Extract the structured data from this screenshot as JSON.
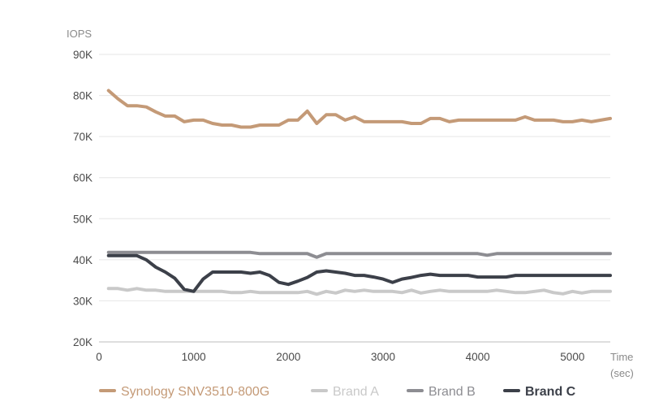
{
  "chart_data": {
    "type": "line",
    "ylabel": "IOPS",
    "xlabel_lines": [
      "Time",
      "(sec)"
    ],
    "xlim": [
      0,
      5400
    ],
    "ylim": [
      20000,
      90000
    ],
    "x_ticks": [
      0,
      1000,
      2000,
      3000,
      4000,
      5000
    ],
    "x_tick_labels": [
      "0",
      "1000",
      "2000",
      "3000",
      "4000",
      "5000"
    ],
    "y_ticks": [
      20000,
      30000,
      40000,
      50000,
      60000,
      70000,
      80000,
      90000
    ],
    "y_tick_labels": [
      "20K",
      "30K",
      "40K",
      "50K",
      "60K",
      "70K",
      "80K",
      "90K"
    ],
    "grid": "horizontal",
    "legend_position": "bottom",
    "x": [
      100,
      200,
      300,
      400,
      500,
      600,
      700,
      800,
      900,
      1000,
      1100,
      1200,
      1300,
      1400,
      1500,
      1600,
      1700,
      1800,
      1900,
      2000,
      2100,
      2200,
      2300,
      2400,
      2500,
      2600,
      2700,
      2800,
      2900,
      3000,
      3100,
      3200,
      3300,
      3400,
      3500,
      3600,
      3700,
      3800,
      3900,
      4000,
      4100,
      4200,
      4300,
      4400,
      4500,
      4600,
      4700,
      4800,
      4900,
      5000,
      5100,
      5200,
      5300,
      5400
    ],
    "series": [
      {
        "name": "Synology SNV3510-800G",
        "color": "#c49a77",
        "values": [
          81200,
          79200,
          77500,
          77500,
          77200,
          76000,
          75000,
          75000,
          73600,
          74000,
          74000,
          73200,
          72800,
          72800,
          72300,
          72300,
          72800,
          72800,
          72800,
          74000,
          74000,
          76200,
          73200,
          75300,
          75300,
          74000,
          74800,
          73600,
          73600,
          73600,
          73600,
          73600,
          73200,
          73200,
          74400,
          74400,
          73600,
          74000,
          74000,
          74000,
          74000,
          74000,
          74000,
          74000,
          74800,
          74000,
          74000,
          74000,
          73600,
          73600,
          74000,
          73600,
          74000,
          74400
        ]
      },
      {
        "name": "Brand A",
        "color": "#c9c9c9",
        "values": [
          33000,
          33000,
          32600,
          33000,
          32600,
          32600,
          32300,
          32300,
          32300,
          32300,
          32300,
          32300,
          32300,
          32000,
          32000,
          32300,
          32000,
          32000,
          32000,
          32000,
          32000,
          32300,
          31600,
          32300,
          31900,
          32600,
          32300,
          32600,
          32300,
          32300,
          32300,
          32000,
          32600,
          31900,
          32300,
          32600,
          32300,
          32300,
          32300,
          32300,
          32300,
          32600,
          32300,
          32000,
          32000,
          32300,
          32600,
          32000,
          31700,
          32300,
          31900,
          32300,
          32300,
          32300
        ]
      },
      {
        "name": "Brand B",
        "color": "#8d8d92",
        "values": [
          41800,
          41800,
          41800,
          41800,
          41800,
          41800,
          41800,
          41800,
          41800,
          41800,
          41800,
          41800,
          41800,
          41800,
          41800,
          41800,
          41500,
          41500,
          41500,
          41500,
          41500,
          41500,
          40600,
          41500,
          41500,
          41500,
          41500,
          41500,
          41500,
          41500,
          41500,
          41500,
          41500,
          41500,
          41500,
          41500,
          41500,
          41500,
          41500,
          41500,
          41100,
          41500,
          41500,
          41500,
          41500,
          41500,
          41500,
          41500,
          41500,
          41500,
          41500,
          41500,
          41500,
          41500
        ]
      },
      {
        "name": "Brand C",
        "color": "#3c4049",
        "values": [
          41000,
          41000,
          41000,
          41000,
          40000,
          38200,
          37000,
          35500,
          32800,
          32300,
          35300,
          37000,
          37000,
          37000,
          37000,
          36700,
          37000,
          36200,
          34500,
          34000,
          34800,
          35700,
          37000,
          37300,
          37000,
          36700,
          36200,
          36200,
          35800,
          35300,
          34500,
          35300,
          35700,
          36200,
          36500,
          36200,
          36200,
          36200,
          36200,
          35800,
          35800,
          35800,
          35800,
          36200,
          36200,
          36200,
          36200,
          36200,
          36200,
          36200,
          36200,
          36200,
          36200,
          36200
        ]
      }
    ]
  }
}
